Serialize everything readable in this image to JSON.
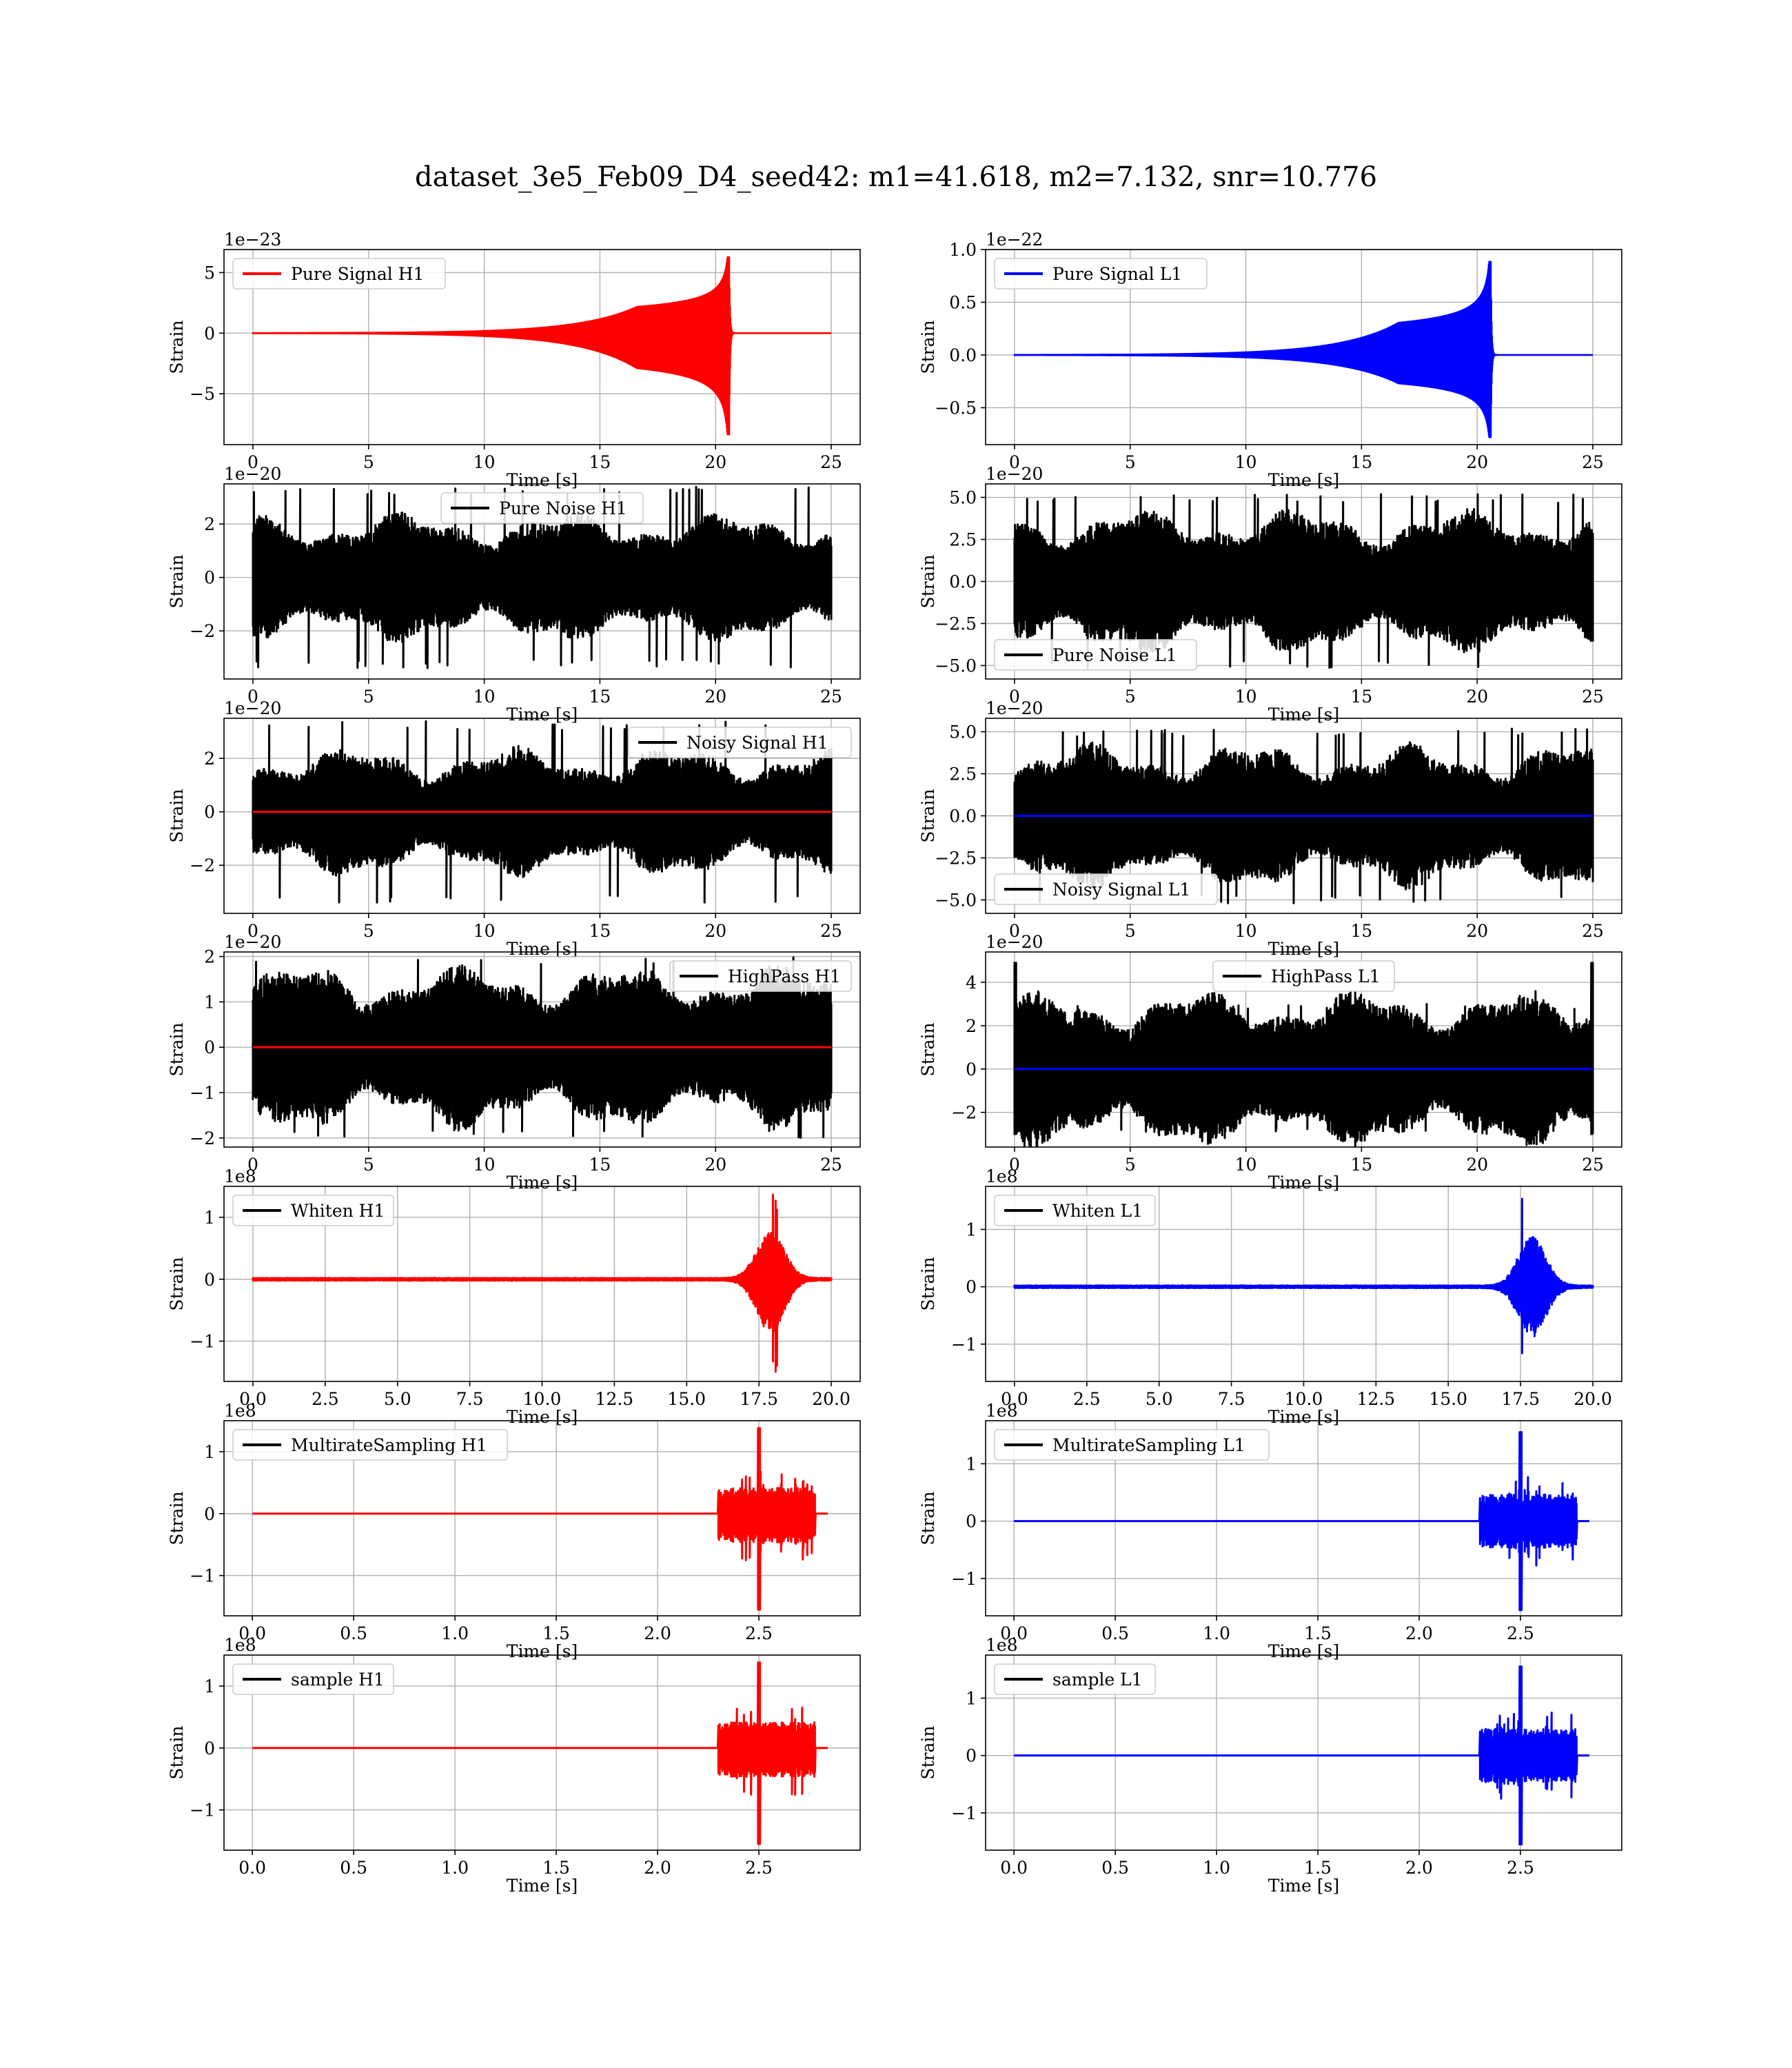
{
  "figure": {
    "title": "dataset_3e5_Feb09_D4_seed42: m1=41.618, m2=7.132, snr=10.776",
    "colors": {
      "H1": "#ff0000",
      "L1": "#0000ff",
      "noise": "#000000",
      "grid": "#b0b0b0"
    }
  },
  "chart_data": [
    {
      "type": "line",
      "panel": "pure-signal-h1",
      "column": 1,
      "row": 1,
      "legend": "Pure Signal H1",
      "legend_loc": "upper left",
      "offset_text": "1e−23",
      "xlabel": "Time [s]",
      "ylabel": "Strain",
      "xlim": [
        -1.25,
        26.25
      ],
      "ylim": [
        -9.2,
        6.9
      ],
      "xticks": [
        0,
        5,
        10,
        15,
        20,
        25
      ],
      "xtick_labels": [
        "0",
        "5",
        "10",
        "15",
        "20",
        "25"
      ],
      "yticks": [
        -5,
        0,
        5
      ],
      "ytick_labels": [
        "−5",
        "0",
        "5"
      ],
      "series": [
        {
          "style": "chirp",
          "color_key": "H1",
          "x": [
            0,
            25
          ],
          "peak_time": 20.6,
          "y_max": 6.6,
          "y_min": -8.8
        }
      ]
    },
    {
      "type": "line",
      "panel": "pure-signal-l1",
      "column": 2,
      "row": 1,
      "legend": "Pure Signal L1",
      "legend_loc": "upper left",
      "offset_text": "1e−22",
      "xlabel": "Time [s]",
      "ylabel": "Strain",
      "xlim": [
        -1.25,
        26.25
      ],
      "ylim": [
        -0.85,
        1.0
      ],
      "xticks": [
        0,
        5,
        10,
        15,
        20,
        25
      ],
      "xtick_labels": [
        "0",
        "5",
        "10",
        "15",
        "20",
        "25"
      ],
      "yticks": [
        -0.5,
        0,
        0.5,
        1.0
      ],
      "ytick_labels": [
        "−0.5",
        "0.0",
        "0.5",
        "1.0"
      ],
      "series": [
        {
          "style": "chirp",
          "color_key": "L1",
          "x": [
            0,
            25
          ],
          "peak_time": 20.6,
          "y_max": 0.93,
          "y_min": -0.82
        }
      ]
    },
    {
      "type": "line",
      "panel": "pure-noise-h1",
      "column": 1,
      "row": 2,
      "legend": "Pure Noise H1",
      "legend_loc": "upper center",
      "offset_text": "1e−20",
      "xlabel": "Time [s]",
      "ylabel": "Strain",
      "xlim": [
        -1.25,
        26.25
      ],
      "ylim": [
        -3.8,
        3.5
      ],
      "xticks": [
        0,
        5,
        10,
        15,
        20,
        25
      ],
      "xtick_labels": [
        "0",
        "5",
        "10",
        "15",
        "20",
        "25"
      ],
      "yticks": [
        -2,
        0,
        2
      ],
      "ytick_labels": [
        "−2",
        "0",
        "2"
      ],
      "series": [
        {
          "style": "noise",
          "color_key": "noise",
          "x": [
            0,
            25
          ],
          "amplitude": 1.8,
          "peak": 3.4
        }
      ]
    },
    {
      "type": "line",
      "panel": "pure-noise-l1",
      "column": 2,
      "row": 2,
      "legend": "Pure Noise L1",
      "legend_loc": "lower left",
      "offset_text": "1e−20",
      "xlabel": "Time [s]",
      "ylabel": "Strain",
      "xlim": [
        -1.25,
        26.25
      ],
      "ylim": [
        -5.8,
        5.8
      ],
      "xticks": [
        0,
        5,
        10,
        15,
        20,
        25
      ],
      "xtick_labels": [
        "0",
        "5",
        "10",
        "15",
        "20",
        "25"
      ],
      "yticks": [
        -5,
        -2.5,
        0,
        2.5,
        5
      ],
      "ytick_labels": [
        "−5.0",
        "−2.5",
        "0.0",
        "2.5",
        "5.0"
      ],
      "series": [
        {
          "style": "noise",
          "color_key": "noise",
          "x": [
            0,
            25
          ],
          "amplitude": 3.2,
          "peak": 5.2
        }
      ]
    },
    {
      "type": "line",
      "panel": "noisy-signal-h1",
      "column": 1,
      "row": 3,
      "legend": "Noisy Signal H1",
      "legend_loc": "upper right",
      "offset_text": "1e−20",
      "xlabel": "Time [s]",
      "ylabel": "Strain",
      "xlim": [
        -1.25,
        26.25
      ],
      "ylim": [
        -3.8,
        3.5
      ],
      "xticks": [
        0,
        5,
        10,
        15,
        20,
        25
      ],
      "xtick_labels": [
        "0",
        "5",
        "10",
        "15",
        "20",
        "25"
      ],
      "yticks": [
        -2,
        0,
        2
      ],
      "ytick_labels": [
        "−2",
        "0",
        "2"
      ],
      "series": [
        {
          "style": "noise",
          "color_key": "noise",
          "x": [
            0,
            25
          ],
          "amplitude": 1.8,
          "peak": 3.4
        },
        {
          "style": "flat",
          "color_key": "H1",
          "x": [
            0,
            25
          ],
          "y": 0
        }
      ]
    },
    {
      "type": "line",
      "panel": "noisy-signal-l1",
      "column": 2,
      "row": 3,
      "legend": "Noisy Signal L1",
      "legend_loc": "lower left",
      "offset_text": "1e−20",
      "xlabel": "Time [s]",
      "ylabel": "Strain",
      "xlim": [
        -1.25,
        26.25
      ],
      "ylim": [
        -5.8,
        5.8
      ],
      "xticks": [
        0,
        5,
        10,
        15,
        20,
        25
      ],
      "xtick_labels": [
        "0",
        "5",
        "10",
        "15",
        "20",
        "25"
      ],
      "yticks": [
        -5,
        -2.5,
        0,
        2.5,
        5
      ],
      "ytick_labels": [
        "−5.0",
        "−2.5",
        "0.0",
        "2.5",
        "5.0"
      ],
      "series": [
        {
          "style": "noise",
          "color_key": "noise",
          "x": [
            0,
            25
          ],
          "amplitude": 3.2,
          "peak": 5.2
        },
        {
          "style": "flat",
          "color_key": "L1",
          "x": [
            0,
            25
          ],
          "y": 0
        }
      ]
    },
    {
      "type": "line",
      "panel": "highpass-h1",
      "column": 1,
      "row": 4,
      "legend": "HighPass H1",
      "legend_loc": "upper right",
      "offset_text": "1e−20",
      "xlabel": "Time [s]",
      "ylabel": "Strain",
      "xlim": [
        -1.25,
        26.25
      ],
      "ylim": [
        -2.2,
        2.1
      ],
      "xticks": [
        0,
        5,
        10,
        15,
        20,
        25
      ],
      "xtick_labels": [
        "0",
        "5",
        "10",
        "15",
        "20",
        "25"
      ],
      "yticks": [
        -2,
        -1,
        0,
        1,
        2
      ],
      "ytick_labels": [
        "−2",
        "−1",
        "0",
        "1",
        "2"
      ],
      "series": [
        {
          "style": "noise",
          "color_key": "noise",
          "x": [
            0,
            25
          ],
          "amplitude": 1.35,
          "peak": 2.0
        },
        {
          "style": "flat",
          "color_key": "H1",
          "x": [
            0,
            25
          ],
          "y": 0
        }
      ]
    },
    {
      "type": "line",
      "panel": "highpass-l1",
      "column": 2,
      "row": 4,
      "legend": "HighPass L1",
      "legend_loc": "upper center",
      "offset_text": "1e−20",
      "xlabel": "Time [s]",
      "ylabel": "Strain",
      "xlim": [
        -1.25,
        26.25
      ],
      "ylim": [
        -3.6,
        5.4
      ],
      "xticks": [
        0,
        5,
        10,
        15,
        20,
        25
      ],
      "xtick_labels": [
        "0",
        "5",
        "10",
        "15",
        "20",
        "25"
      ],
      "yticks": [
        -2,
        0,
        2,
        4
      ],
      "ytick_labels": [
        "−2",
        "0",
        "2",
        "4"
      ],
      "series": [
        {
          "style": "noise",
          "color_key": "noise",
          "x": [
            0,
            25
          ],
          "amplitude": 2.7,
          "peak": 3.0,
          "edge_spike": 4.9
        },
        {
          "style": "flat",
          "color_key": "L1",
          "x": [
            0,
            25
          ],
          "y": 0
        }
      ]
    },
    {
      "type": "line",
      "panel": "whiten-h1",
      "column": 1,
      "row": 5,
      "legend": "Whiten H1",
      "legend_loc": "upper left",
      "offset_text": "1e8",
      "xlabel": "Time [s]",
      "ylabel": "Strain",
      "xlim": [
        -1.0,
        21.0
      ],
      "ylim": [
        -1.65,
        1.5
      ],
      "xticks": [
        0,
        2.5,
        5,
        7.5,
        10,
        12.5,
        15,
        17.5,
        20
      ],
      "xtick_labels": [
        "0.0",
        "2.5",
        "5.0",
        "7.5",
        "10.0",
        "12.5",
        "15.0",
        "17.5",
        "20.0"
      ],
      "yticks": [
        -1,
        0,
        1
      ],
      "ytick_labels": [
        "−1",
        "0",
        "1"
      ],
      "series": [
        {
          "style": "burst",
          "color_key": "H1",
          "x": [
            0,
            20
          ],
          "burst_center": 17.9,
          "y_max": 1.38,
          "y_min": -1.55
        }
      ]
    },
    {
      "type": "line",
      "panel": "whiten-l1",
      "column": 2,
      "row": 5,
      "legend": "Whiten L1",
      "legend_loc": "upper left",
      "offset_text": "1e8",
      "xlabel": "Time [s]",
      "ylabel": "Strain",
      "xlim": [
        -1.0,
        21.0
      ],
      "ylim": [
        -1.65,
        1.75
      ],
      "xticks": [
        0,
        2.5,
        5,
        7.5,
        10,
        12.5,
        15,
        17.5,
        20
      ],
      "xtick_labels": [
        "0.0",
        "2.5",
        "5.0",
        "7.5",
        "10.0",
        "12.5",
        "15.0",
        "17.5",
        "20.0"
      ],
      "yticks": [
        -1,
        0,
        1
      ],
      "ytick_labels": [
        "−1",
        "0",
        "1"
      ],
      "series": [
        {
          "style": "burst",
          "color_key": "L1",
          "x": [
            0,
            20
          ],
          "burst_center": 17.9,
          "y_max": 1.55,
          "y_min": -1.55
        }
      ]
    },
    {
      "type": "line",
      "panel": "multirate-h1",
      "column": 1,
      "row": 6,
      "legend": "MultirateSampling H1",
      "legend_loc": "upper left",
      "offset_text": "1e8",
      "xlabel": "Time [s]",
      "ylabel": "Strain",
      "xlim": [
        -0.14,
        3.0
      ],
      "ylim": [
        -1.65,
        1.5
      ],
      "xticks": [
        0,
        0.5,
        1.0,
        1.5,
        2.0,
        2.5
      ],
      "xtick_labels": [
        "0.0",
        "0.5",
        "1.0",
        "1.5",
        "2.0",
        "2.5"
      ],
      "yticks": [
        -1,
        0,
        1
      ],
      "ytick_labels": [
        "−1",
        "0",
        "1"
      ],
      "series": [
        {
          "style": "segments",
          "color_key": "H1",
          "x": [
            0,
            2.84
          ],
          "active_from": 2.3,
          "active_to": 2.78,
          "spike_time": 2.5,
          "y_max": 1.38,
          "y_min": -1.55
        }
      ]
    },
    {
      "type": "line",
      "panel": "multirate-l1",
      "column": 2,
      "row": 6,
      "legend": "MultirateSampling L1",
      "legend_loc": "upper left",
      "offset_text": "1e8",
      "xlabel": "Time [s]",
      "ylabel": "Strain",
      "xlim": [
        -0.14,
        3.0
      ],
      "ylim": [
        -1.65,
        1.75
      ],
      "xticks": [
        0,
        0.5,
        1.0,
        1.5,
        2.0,
        2.5
      ],
      "xtick_labels": [
        "0.0",
        "0.5",
        "1.0",
        "1.5",
        "2.0",
        "2.5"
      ],
      "yticks": [
        -1,
        0,
        1
      ],
      "ytick_labels": [
        "−1",
        "0",
        "1"
      ],
      "series": [
        {
          "style": "segments",
          "color_key": "L1",
          "x": [
            0,
            2.84
          ],
          "active_from": 2.3,
          "active_to": 2.78,
          "spike_time": 2.5,
          "y_max": 1.55,
          "y_min": -1.55
        }
      ]
    },
    {
      "type": "line",
      "panel": "sample-h1",
      "column": 1,
      "row": 7,
      "legend": "sample H1",
      "legend_loc": "upper left",
      "offset_text": "1e8",
      "xlabel": "Time [s]",
      "ylabel": "Strain",
      "xlim": [
        -0.14,
        3.0
      ],
      "ylim": [
        -1.65,
        1.5
      ],
      "xticks": [
        0,
        0.5,
        1.0,
        1.5,
        2.0,
        2.5
      ],
      "xtick_labels": [
        "0.0",
        "0.5",
        "1.0",
        "1.5",
        "2.0",
        "2.5"
      ],
      "yticks": [
        -1,
        0,
        1
      ],
      "ytick_labels": [
        "−1",
        "0",
        "1"
      ],
      "series": [
        {
          "style": "segments",
          "color_key": "H1",
          "x": [
            0,
            2.84
          ],
          "active_from": 2.3,
          "active_to": 2.78,
          "spike_time": 2.5,
          "y_max": 1.38,
          "y_min": -1.55
        }
      ]
    },
    {
      "type": "line",
      "panel": "sample-l1",
      "column": 2,
      "row": 7,
      "legend": "sample L1",
      "legend_loc": "upper left",
      "offset_text": "1e8",
      "xlabel": "Time [s]",
      "ylabel": "Strain",
      "xlim": [
        -0.14,
        3.0
      ],
      "ylim": [
        -1.65,
        1.75
      ],
      "xticks": [
        0,
        0.5,
        1.0,
        1.5,
        2.0,
        2.5
      ],
      "xtick_labels": [
        "0.0",
        "0.5",
        "1.0",
        "1.5",
        "2.0",
        "2.5"
      ],
      "yticks": [
        -1,
        0,
        1
      ],
      "ytick_labels": [
        "−1",
        "0",
        "1"
      ],
      "series": [
        {
          "style": "segments",
          "color_key": "L1",
          "x": [
            0,
            2.84
          ],
          "active_from": 2.3,
          "active_to": 2.78,
          "spike_time": 2.5,
          "y_max": 1.55,
          "y_min": -1.55
        }
      ]
    }
  ]
}
